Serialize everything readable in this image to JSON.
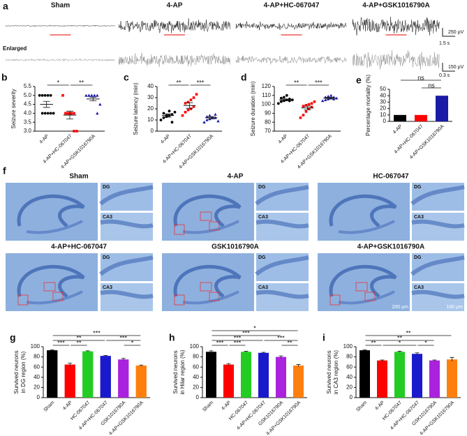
{
  "eeg": {
    "label": "a",
    "columns": [
      "Sham",
      "4-AP",
      "4-AP+HC-067047",
      "4-AP+GSK1016790A"
    ],
    "enlarged_label": "Enlarged",
    "scale_top": [
      "250 µV",
      "1.5 s"
    ],
    "scale_bottom": [
      "150 µV",
      "0.3 s"
    ]
  },
  "histology": {
    "label": "f",
    "panels": [
      "Sham",
      "4-AP",
      "HC-067047",
      "4-AP+HC-067047",
      "GSK1016790A",
      "4-AP+GSK1016790A"
    ],
    "inset_labels": [
      "DG",
      "CA3"
    ],
    "scale_bars": [
      "200 µm",
      "100 µm"
    ]
  },
  "chart_data": [
    {
      "type": "dot",
      "label": "b",
      "ylabel": "Seizure severity",
      "categories": [
        "4-AP",
        "4-AP+HC-067047",
        "4-AP+GSK1016790A"
      ],
      "colors": [
        "#000000",
        "#ff0000",
        "#1a1aa6"
      ],
      "markers": [
        "circle",
        "square",
        "triangle"
      ],
      "points": [
        [
          5,
          5,
          5,
          5,
          5,
          4,
          4,
          4,
          4,
          4
        ],
        [
          5,
          4,
          4,
          4,
          4,
          4,
          4,
          4,
          3,
          3
        ],
        [
          5,
          5,
          5,
          5,
          5,
          5,
          5,
          5,
          4,
          4.5
        ]
      ],
      "means": [
        4.5,
        3.9,
        4.8
      ],
      "sems": [
        0.17,
        0.22,
        0.1
      ],
      "ylim": [
        3,
        5.5
      ],
      "yticks": [
        {
          "value": 3,
          "label": "3.0"
        },
        3.5,
        {
          "value": 4,
          "label": "4.0"
        },
        4.5,
        {
          "value": 5,
          "label": "5.0"
        },
        5.5
      ],
      "brackets": [
        {
          "pair": [
            0,
            1
          ],
          "label": "*"
        },
        {
          "pair": [
            1,
            2
          ],
          "label": "**"
        }
      ]
    },
    {
      "type": "dot",
      "label": "c",
      "ylabel": "Seizure latency (min)",
      "categories": [
        "4-AP",
        "4-AP+HC-067047",
        "4-AP+GSK1016790A"
      ],
      "colors": [
        "#000000",
        "#ff0000",
        "#1a1aa6"
      ],
      "markers": [
        "circle",
        "square",
        "triangle"
      ],
      "points": [
        [
          10,
          12,
          13,
          14,
          15,
          16,
          14,
          18,
          8,
          17
        ],
        [
          14,
          17,
          19,
          20,
          22,
          25,
          26,
          28,
          30,
          33
        ],
        [
          8,
          10,
          11,
          12,
          12,
          13,
          14,
          12,
          15,
          9
        ]
      ],
      "means": [
        14,
        23,
        12
      ],
      "sems": [
        1.5,
        2.5,
        1
      ],
      "ylim": [
        0,
        40
      ],
      "yticks": [
        0,
        10,
        20,
        30,
        40
      ],
      "brackets": [
        {
          "pair": [
            0,
            1
          ],
          "label": "**"
        },
        {
          "pair": [
            1,
            2
          ],
          "label": "***"
        }
      ]
    },
    {
      "type": "dot",
      "label": "d",
      "ylabel": "Seizure duration (min)",
      "categories": [
        "4-AP",
        "4-AP+HC-067047",
        "4-AP+GSK1016790A"
      ],
      "colors": [
        "#000000",
        "#ff0000",
        "#1a1aa6"
      ],
      "markers": [
        "circle",
        "square",
        "triangle"
      ],
      "points": [
        [
          101,
          103,
          104,
          105,
          106,
          107,
          108,
          110,
          104,
          105
        ],
        [
          85,
          88,
          92,
          95,
          97,
          98,
          99,
          100,
          101,
          103
        ],
        [
          104,
          105,
          106,
          107,
          108,
          108,
          109,
          110,
          106,
          107
        ]
      ],
      "means": [
        105,
        96,
        107
      ],
      "sems": [
        1,
        2,
        1
      ],
      "ylim": [
        70,
        120
      ],
      "yticks": [
        70,
        80,
        90,
        100,
        110,
        120
      ],
      "brackets": [
        {
          "pair": [
            0,
            1
          ],
          "label": "**"
        },
        {
          "pair": [
            1,
            2
          ],
          "label": "***"
        }
      ]
    },
    {
      "type": "bar",
      "label": "e",
      "ylabel": "Percentage mortality (%)",
      "categories": [
        "4-AP",
        "4-AP+HC-067047",
        "4-AP+GSK1016790A"
      ],
      "colors": [
        "#000000",
        "#ff0000",
        "#1a1aa6"
      ],
      "values": [
        10,
        10,
        40
      ],
      "ylim": [
        0,
        50
      ],
      "yticks": [
        0,
        10,
        20,
        30,
        40,
        50
      ],
      "brackets": [
        {
          "pair": [
            1,
            2
          ],
          "label": "ns"
        },
        {
          "pair": [
            0,
            2
          ],
          "label": "ns"
        }
      ]
    },
    {
      "type": "bar",
      "label": "g",
      "ylabel": [
        "Survived neurons",
        "in DG region (%)"
      ],
      "categories": [
        "Sham",
        "4-AP",
        "HC-067047",
        "4-AP+HC-067047",
        "GSK1016790A",
        "4-AP+GSK1016790A"
      ],
      "colors": [
        "#000000",
        "#ff0000",
        "#22cc22",
        "#1a1acc",
        "#aa22dd",
        "#ff7f0e"
      ],
      "values": [
        93,
        65,
        91,
        82,
        75,
        63
      ],
      "errors": [
        1,
        3,
        1,
        1,
        2,
        1
      ],
      "ylim": [
        0,
        100
      ],
      "yticks": [
        0,
        20,
        40,
        60,
        80,
        100
      ],
      "brackets": [
        {
          "pair": [
            0,
            1
          ],
          "label": "***"
        },
        {
          "pair": [
            1,
            2
          ],
          "label": "**"
        },
        {
          "pair": [
            4,
            5
          ],
          "label": "*"
        },
        {
          "pair": [
            3,
            5
          ],
          "label": "***"
        },
        {
          "pair": [
            0,
            3
          ],
          "label": "**"
        },
        {
          "pair": [
            0,
            5
          ],
          "label": "***"
        }
      ]
    },
    {
      "type": "bar",
      "label": "h",
      "ylabel": [
        "Survived neurons",
        "in Hilar region (%)"
      ],
      "categories": [
        "Sham",
        "4-AP",
        "HC-067047",
        "4-AP+HC-067047",
        "GSK1016790A",
        "4-AP+GSK1016790A"
      ],
      "colors": [
        "#000000",
        "#ff0000",
        "#22cc22",
        "#1a1acc",
        "#aa22dd",
        "#ff7f0e"
      ],
      "values": [
        90,
        65,
        90,
        88,
        80,
        63
      ],
      "errors": [
        2,
        2,
        1,
        1,
        2,
        2
      ],
      "ylim": [
        0,
        100
      ],
      "yticks": [
        0,
        20,
        40,
        60,
        80,
        100
      ],
      "brackets": [
        {
          "pair": [
            0,
            1
          ],
          "label": "***"
        },
        {
          "pair": [
            1,
            2
          ],
          "label": "***"
        },
        {
          "pair": [
            4,
            5
          ],
          "label": "**"
        },
        {
          "pair": [
            3,
            5
          ],
          "label": "***"
        },
        {
          "pair": [
            0,
            3
          ],
          "label": "***"
        },
        {
          "pair": [
            0,
            4
          ],
          "label": "***"
        },
        {
          "pair": [
            0,
            5
          ],
          "label": "*"
        }
      ]
    },
    {
      "type": "bar",
      "label": "i",
      "ylabel": [
        "Survived neurons",
        "in CA3 region (%)"
      ],
      "categories": [
        "Sham",
        "4-AP",
        "HC-067047",
        "4-AP+HC-067047",
        "GSK1016790A",
        "4-AP+GSK1016790A"
      ],
      "colors": [
        "#000000",
        "#ff0000",
        "#22cc22",
        "#1a1acc",
        "#aa22dd",
        "#ff7f0e"
      ],
      "values": [
        93,
        73,
        90,
        86,
        73,
        75
      ],
      "errors": [
        1,
        1,
        1,
        2,
        1,
        4
      ],
      "ylim": [
        0,
        100
      ],
      "yticks": [
        0,
        20,
        40,
        60,
        80,
        100
      ],
      "brackets": [
        {
          "pair": [
            0,
            1
          ],
          "label": "**"
        },
        {
          "pair": [
            3,
            4
          ],
          "label": "*"
        },
        {
          "pair": [
            1,
            3
          ],
          "label": "*"
        },
        {
          "pair": [
            0,
            4
          ],
          "label": "**"
        },
        {
          "pair": [
            0,
            5
          ],
          "label": "**"
        }
      ]
    }
  ]
}
